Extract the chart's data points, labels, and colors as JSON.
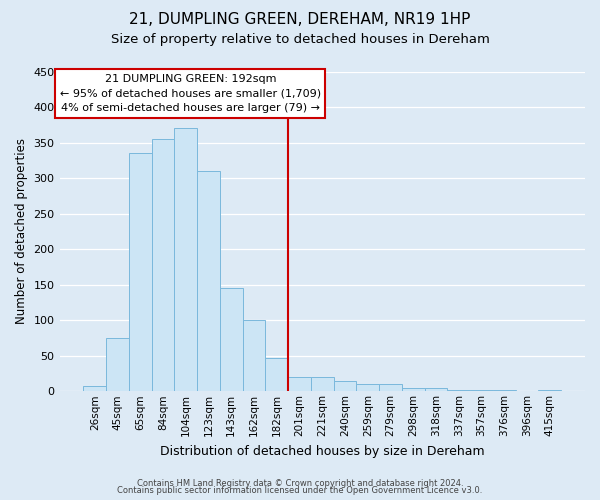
{
  "title": "21, DUMPLING GREEN, DEREHAM, NR19 1HP",
  "subtitle": "Size of property relative to detached houses in Dereham",
  "xlabel": "Distribution of detached houses by size in Dereham",
  "ylabel": "Number of detached properties",
  "bar_labels": [
    "26sqm",
    "45sqm",
    "65sqm",
    "84sqm",
    "104sqm",
    "123sqm",
    "143sqm",
    "162sqm",
    "182sqm",
    "201sqm",
    "221sqm",
    "240sqm",
    "259sqm",
    "279sqm",
    "298sqm",
    "318sqm",
    "337sqm",
    "357sqm",
    "376sqm",
    "396sqm",
    "415sqm"
  ],
  "bar_heights": [
    7,
    75,
    335,
    355,
    370,
    310,
    145,
    100,
    47,
    20,
    20,
    15,
    10,
    10,
    5,
    5,
    2,
    2,
    2,
    0,
    2
  ],
  "bar_color": "#cce5f5",
  "bar_edge_color": "#7ab8dc",
  "vline_x": 8.5,
  "vline_color": "#cc0000",
  "annotation_title": "21 DUMPLING GREEN: 192sqm",
  "annotation_line1": "← 95% of detached houses are smaller (1,709)",
  "annotation_line2": "4% of semi-detached houses are larger (79) →",
  "annotation_box_facecolor": "#ffffff",
  "annotation_box_edgecolor": "#cc0000",
  "ylim": [
    0,
    450
  ],
  "yticks": [
    0,
    50,
    100,
    150,
    200,
    250,
    300,
    350,
    400,
    450
  ],
  "footer1": "Contains HM Land Registry data © Crown copyright and database right 2024.",
  "footer2": "Contains public sector information licensed under the Open Government Licence v3.0.",
  "bg_color": "#ddeaf5",
  "title_fontsize": 11,
  "subtitle_fontsize": 9.5,
  "ylabel_fontsize": 8.5,
  "xlabel_fontsize": 9,
  "tick_labelsize": 7.5,
  "ytick_labelsize": 8,
  "footer_fontsize": 6,
  "annotation_fontsize": 8
}
